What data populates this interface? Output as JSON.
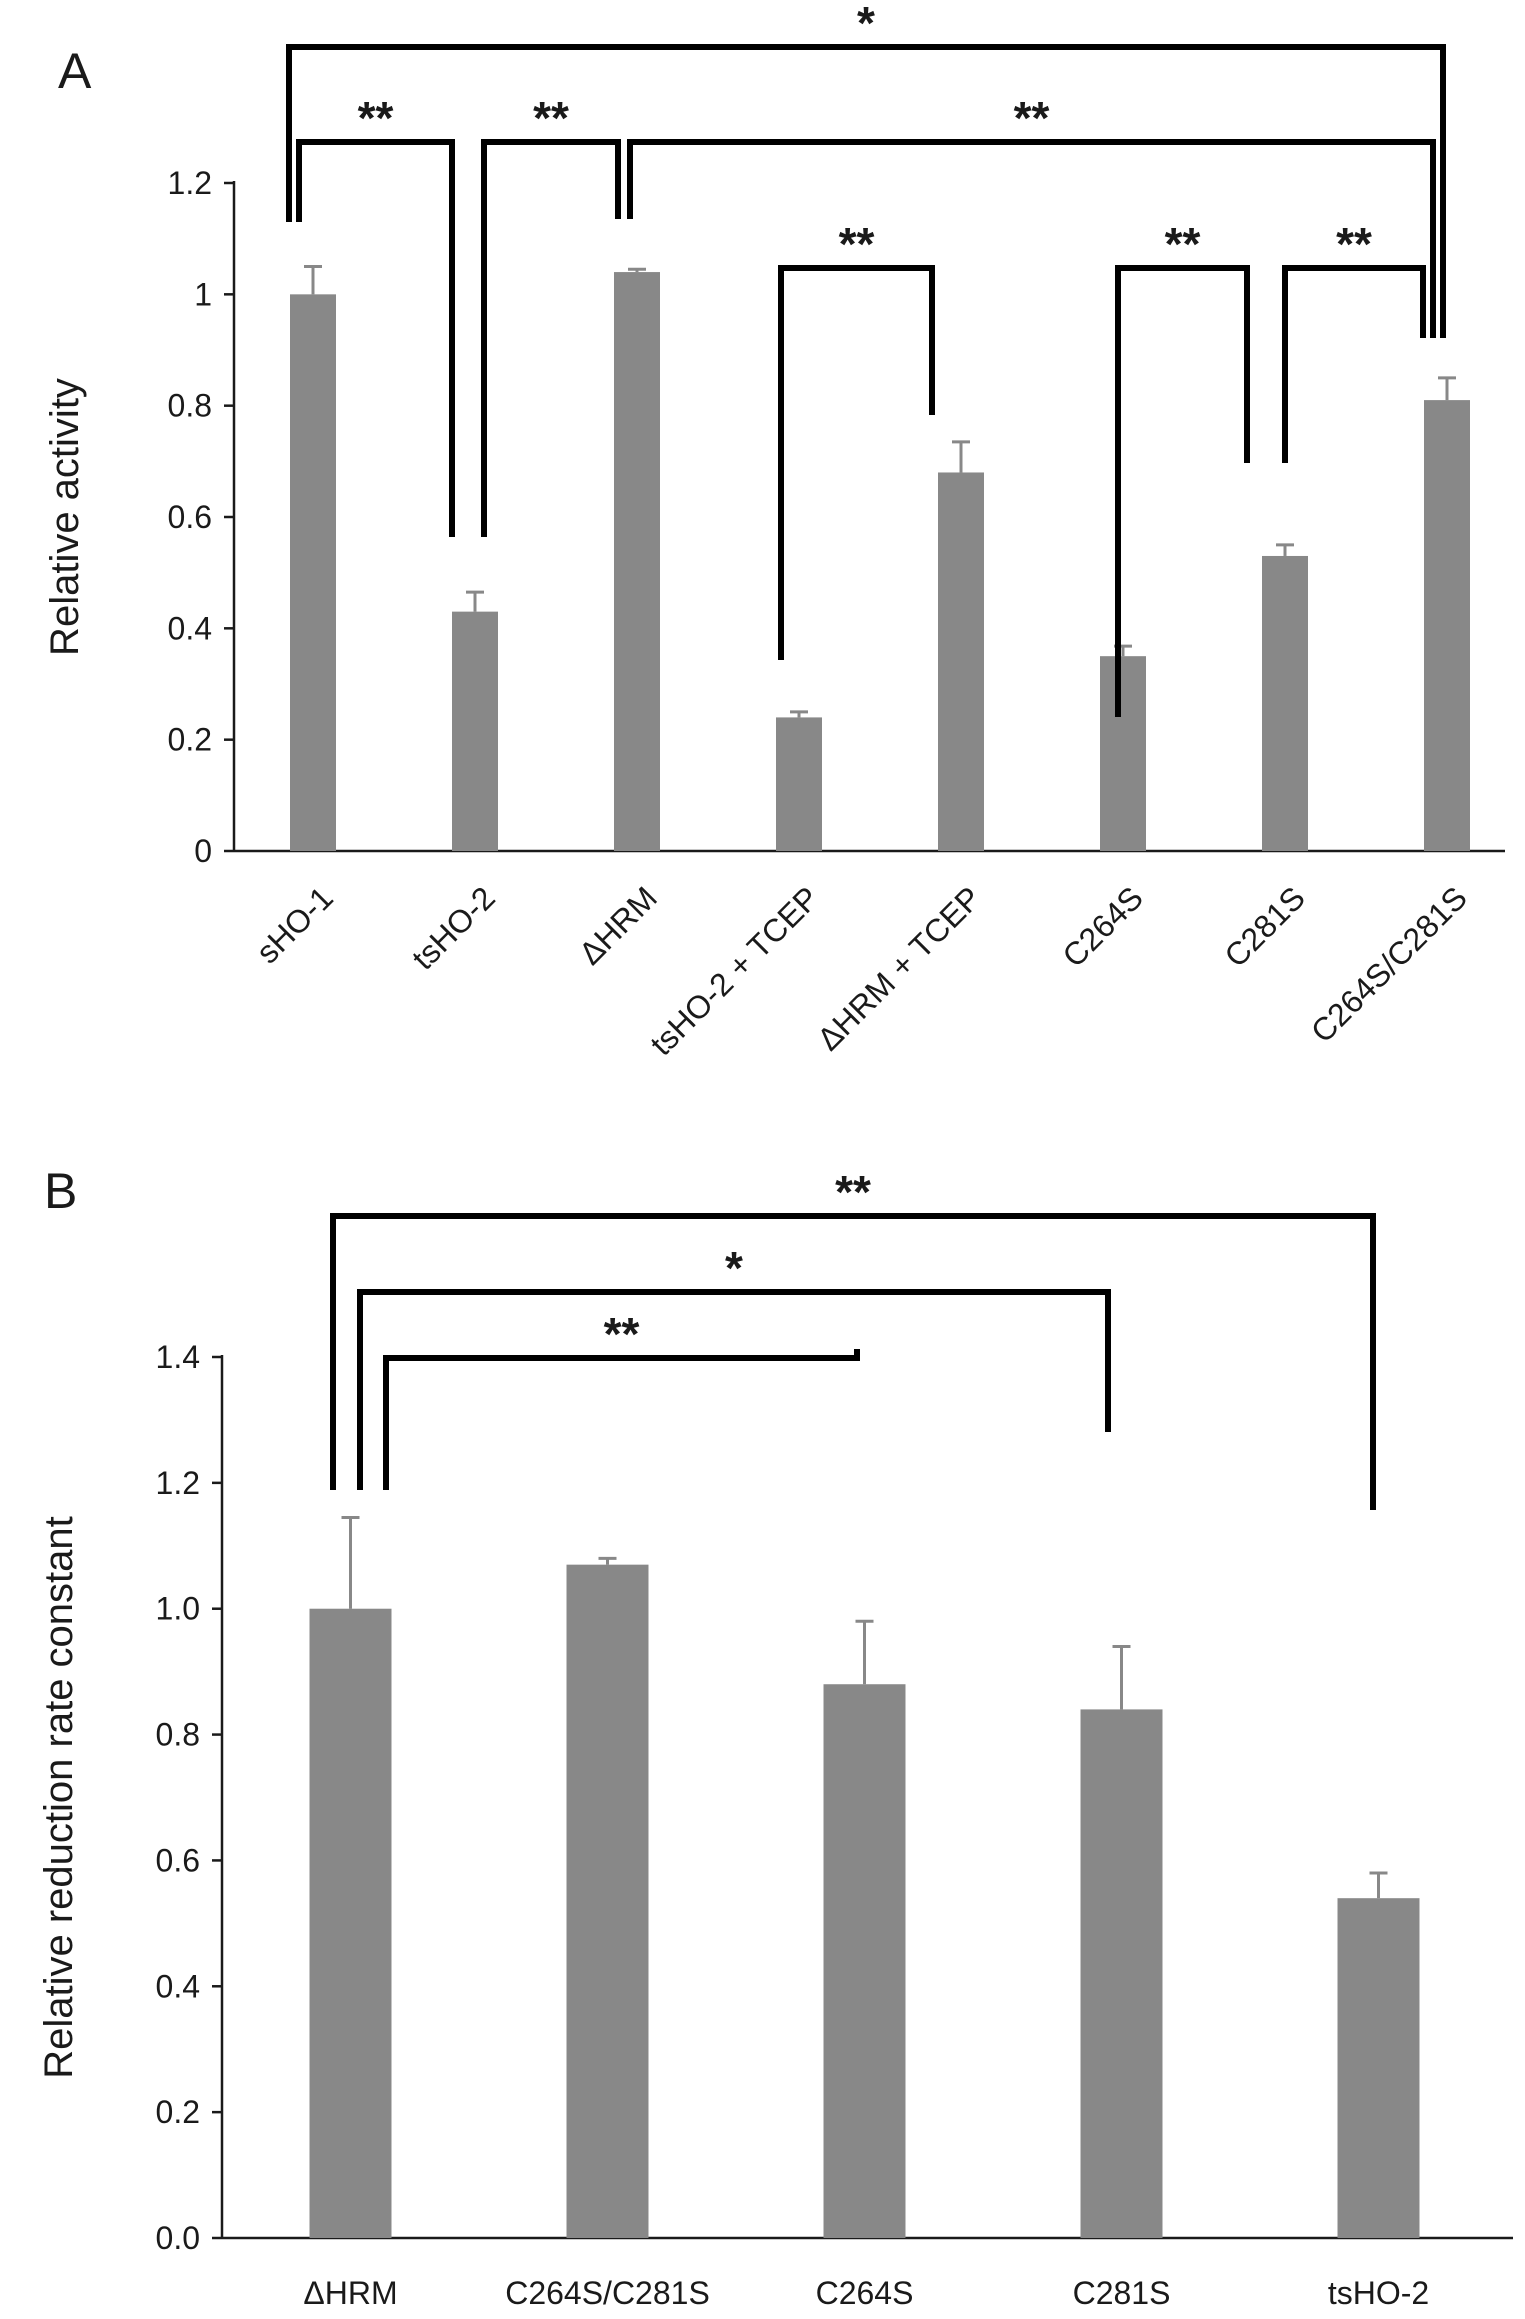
{
  "figure": {
    "panels": [
      "A",
      "B"
    ]
  },
  "chart_data": [
    {
      "panel": "A",
      "type": "bar",
      "ylabel": "Relative activity",
      "xlabel": "",
      "ylim": [
        0,
        1.2
      ],
      "ytick_values": [
        0,
        0.2,
        0.4,
        0.6,
        0.8,
        1,
        1.2
      ],
      "ytick_labels": [
        "0",
        "0.2",
        "0.4",
        "0.6",
        "0.8",
        "1",
        "1.2"
      ],
      "categories": [
        "sHO-1",
        "tsHO-2",
        "ΔHRM",
        "tsHO-2 + TCEP",
        "ΔHRM + TCEP",
        "C264S",
        "C281S",
        "C264S/C281S"
      ],
      "values": [
        1.0,
        0.43,
        1.04,
        0.24,
        0.68,
        0.35,
        0.53,
        0.81
      ],
      "errors": [
        0.05,
        0.035,
        0.005,
        0.01,
        0.055,
        0.018,
        0.02,
        0.04
      ],
      "significance": [
        {
          "from": 0,
          "to": 7,
          "label": "*"
        },
        {
          "from": 0,
          "to": 1,
          "label": "**"
        },
        {
          "from": 1,
          "to": 2,
          "label": "**"
        },
        {
          "from": 2,
          "to": 7,
          "label": "**"
        },
        {
          "from": 3,
          "to": 4,
          "label": "**"
        },
        {
          "from": 5,
          "to": 6,
          "label": "**"
        },
        {
          "from": 6,
          "to": 7,
          "label": "**"
        }
      ]
    },
    {
      "panel": "B",
      "type": "bar",
      "ylabel": "Relative reduction rate constant",
      "xlabel": "",
      "ylim": [
        0,
        1.4
      ],
      "ytick_values": [
        0,
        0.2,
        0.4,
        0.6,
        0.8,
        1.0,
        1.2,
        1.4
      ],
      "ytick_labels": [
        "0.0",
        "0.2",
        "0.4",
        "0.6",
        "0.8",
        "1.0",
        "1.2",
        "1.4"
      ],
      "categories": [
        "ΔHRM",
        "C264S/C281S",
        "C264S",
        "C281S",
        "tsHO-2"
      ],
      "values": [
        1.0,
        1.07,
        0.88,
        0.84,
        0.54
      ],
      "errors": [
        0.145,
        0.01,
        0.1,
        0.1,
        0.04
      ],
      "significance": [
        {
          "from": 0,
          "to": 4,
          "label": "**"
        },
        {
          "from": 0,
          "to": 3,
          "label": "*"
        },
        {
          "from": 0,
          "to": 2,
          "label": "**"
        }
      ]
    }
  ]
}
